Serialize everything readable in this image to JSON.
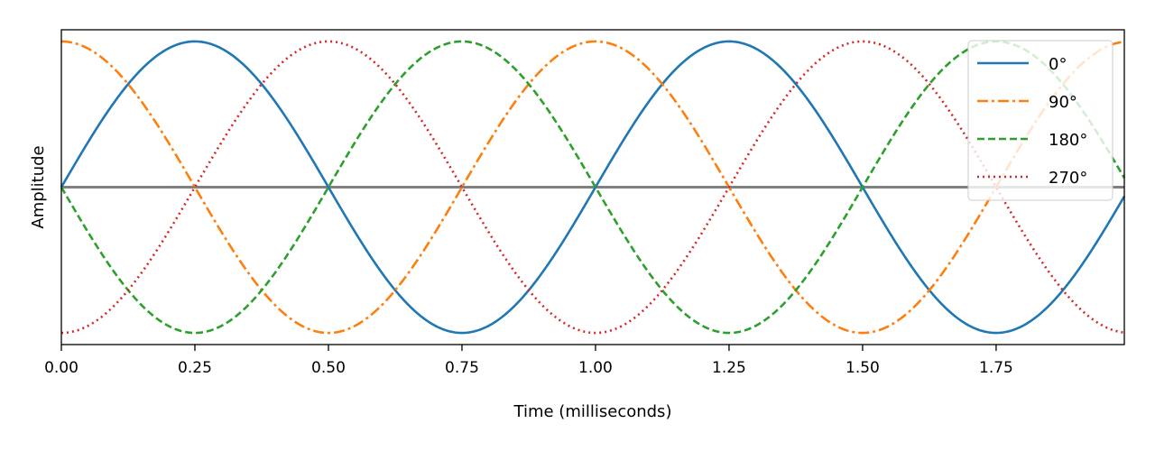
{
  "chart_data": {
    "type": "line",
    "title": "",
    "xlabel": "Time (milliseconds)",
    "ylabel": "Amplitude",
    "xlim": [
      0,
      1.99
    ],
    "ylim": [
      -1.08,
      1.08
    ],
    "x_ticks": [
      "0.00",
      "0.25",
      "0.50",
      "0.75",
      "1.00",
      "1.25",
      "1.50",
      "1.75"
    ],
    "y_ticks_shown": false,
    "grid": false,
    "legend_position": "top-right",
    "zero_line": true,
    "frequency_khz": 1,
    "function": "sin(2*pi*f*t + phase)",
    "sample_x": [
      0,
      0.125,
      0.25,
      0.375,
      0.5,
      0.625,
      0.75,
      0.875,
      1.0,
      1.125,
      1.25,
      1.375,
      1.5,
      1.625,
      1.75,
      1.875,
      1.99
    ],
    "series": [
      {
        "name": "0°",
        "phase_deg": 0,
        "color": "#1f77b4",
        "dash": "solid",
        "values": [
          0,
          0.707,
          1,
          0.707,
          0,
          -0.707,
          -1,
          -0.707,
          0,
          0.707,
          1,
          0.707,
          0,
          -0.707,
          -1,
          -0.707,
          -0.063
        ]
      },
      {
        "name": "90°",
        "phase_deg": 90,
        "color": "#ff7f0e",
        "dash": "dashdot",
        "values": [
          1,
          0.707,
          0,
          -0.707,
          -1,
          -0.707,
          0,
          0.707,
          1,
          0.707,
          0,
          -0.707,
          -1,
          -0.707,
          0,
          0.707,
          0.998
        ]
      },
      {
        "name": "180°",
        "phase_deg": 180,
        "color": "#2ca02c",
        "dash": "dashed",
        "values": [
          0,
          -0.707,
          -1,
          -0.707,
          0,
          0.707,
          1,
          0.707,
          0,
          -0.707,
          -1,
          -0.707,
          0,
          0.707,
          1,
          0.707,
          0.063
        ]
      },
      {
        "name": "270°",
        "phase_deg": 270,
        "color": "#d62728",
        "dash": "dotted",
        "values": [
          -1,
          -0.707,
          0,
          0.707,
          1,
          0.707,
          0,
          -0.707,
          -1,
          -0.707,
          0,
          0.707,
          1,
          0.707,
          0,
          -0.707,
          -0.998
        ]
      }
    ]
  }
}
